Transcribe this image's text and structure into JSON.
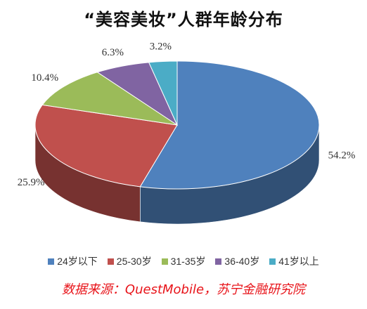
{
  "title": "“美容美妆”人群年龄分布",
  "chart_data": {
    "type": "pie",
    "title": "“美容美妆”人群年龄分布",
    "categories": [
      "24岁以下",
      "25-30岁",
      "31-35岁",
      "36-40岁",
      "41岁以上"
    ],
    "values": [
      54.2,
      25.9,
      10.4,
      6.3,
      3.2
    ],
    "value_labels": [
      "54.2%",
      "25.9%",
      "10.4%",
      "6.3%",
      "3.2%"
    ],
    "colors": [
      "#4f81bd",
      "#c0504d",
      "#9bbb59",
      "#8064a2",
      "#4bacc6"
    ],
    "style": "3d-tilted",
    "legend_placement": "bottom"
  },
  "source": "数据来源：QuestMobile，苏宁金融研究院"
}
